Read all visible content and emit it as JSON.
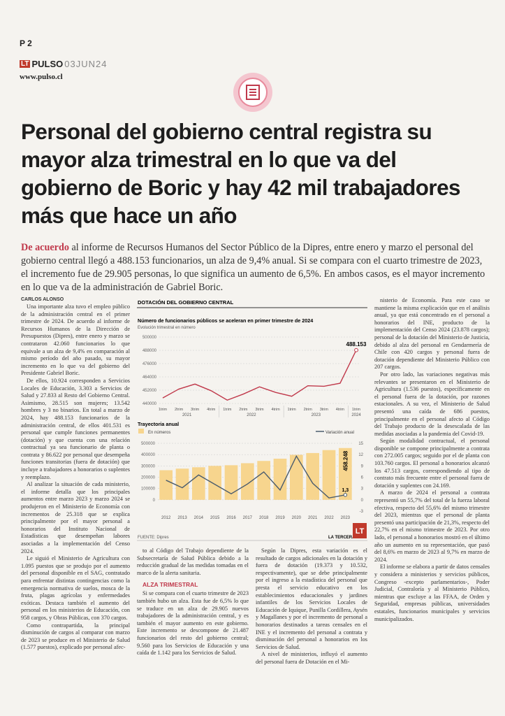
{
  "header": {
    "page": "P 2",
    "logo": "LT",
    "brand": "PULSO",
    "date": "03JUN24",
    "url": "www.pulso.cl"
  },
  "title": "Personal del gobierno central registra su mayor alza trimestral en lo que va del gobierno de Boric y hay 42 mil trabajadores más que hace un año",
  "lead": {
    "kicker": "De acuerdo",
    "text": "al informe de Recursos Humanos del Sector Público de la Dipres, entre enero y marzo el personal del gobierno central llegó a 488.153 funcionarios, un alza de 9,4% anual. Si se compara con el cuarto trimestre de 2023, el incremento fue de 29.905 personas, lo que significa un aumento de 6,5%. En ambos casos, es el mayor incremento en lo que va de la administración de Gabriel Boric."
  },
  "byline": "CARLOS ALONSO",
  "columns": [
    [
      {
        "text": "Una importante alza tuvo el empleo público de la administración central en el primer trimestre de 2024. De acuerdo al informe de Recursos Humanos de la Dirección de Presupuestos (Dipres), entre enero y marzo se contrataron 42.060 funcionarios lo que equivale a un alza de 9,4% en comparación al mismo período del año pasado, su mayor incremento en lo que va del gobierno del Presidente Gabriel Boric."
      },
      {
        "text": "De ellos, 10.924 corresponden a Servicios Locales de Educación, 3.303 a Servicios de Salud y 27.833 al Resto del Gobierno Central. Asimismo, 28.515 son mujeres; 13.542 hombres y 3 no binarios. En total a marzo de 2024, hay 488.153 funcionarios de la administración central, de ellos 401.531 es personal que cumple funciones permanentes (dotación) y que cuenta con una relación contractual ya sea funcionario de planta o contrata y 86.622 por personal que desempeña funciones transitorias (fuera de dotación) que incluye a trabajadores a honorarios o suplentes y reemplazo."
      },
      {
        "text": "Al analizar la situación de cada ministerio, el informe detalla que los principales aumentos entre marzo 2023 y marzo 2024 se produjeron en el Ministerio de Economía con incrementos de 25.318 que se explica principalmente por el mayor personal a honorarios del Instituto Nacional de Estadísticas que desempeñan labores asociadas a la implementación del Censo 2024."
      },
      {
        "text": "Le siguió el Ministerio de Agricultura con 1.095 puestos que se produjo por el aumento del personal disponible en el SAG, contratado para enfrentar distintas contingencias como la emergencia normativa de suelos, mosca de la fruta, plagas agrícolas y enfermedades exóticas. Destaca también el aumento del personal en los ministerios de Educación, con 958 cargos, y Obras Públicas, con 370 cargos."
      },
      {
        "text": "Como contrapartida, la principal disminución de cargos al comparar con marzo de 2023 se produce en el Ministerio de Salud (1.577 puestos), explicado por personal afec-"
      }
    ],
    [
      {
        "text": "to al Código del Trabajo dependiente de la Subsecretaría de Salud Pública debido a la reducción gradual de las medidas tomadas en el marco de la alerta sanitaria."
      },
      {
        "subhead": "ALZA TRIMESTRAL"
      },
      {
        "text": "Si se compara con el cuarto trimestre de 2023 también hubo un alza. Esta fue de 6,5% lo que se traduce en un alza de 29.905 nuevos trabajadores de la administración central, y es también el mayor aumento en este gobierno. Este incremento se descompone de 21.487 funcionarios del resto del gobierno central; 9.560 para los Servicios de Educación y una caída de 1.142 para los Servicios de Salud."
      }
    ],
    [
      {
        "text": "Según la Dipres, esta variación es el resultado de cargos adicionales en la dotación y fuera de dotación (19.373 y 10.532, respectivamente), que se debe principalmente por el ingreso a la estadística del personal que presta el servicio educativo en los establecimientos educacionales y jardines infantiles de los Servicios Locales de Educación de Iquique, Punilla Cordillera, Aysén y Magallanes y por el incremento de personal a honorarios destinados a tareas censales en el INE y el incremento del personal a contrata y disminución del personal a honorarios en los Servicios de Salud."
      },
      {
        "text": "A nivel de ministerios, influyó el aumento del personal fuera de Dotación en el Mi-"
      }
    ],
    [
      {
        "text": "nisterio de Economía. Para este caso se mantiene la misma explicación que en el análisis anual, ya que está concentrado en el personal a honorarios del INE, producto de la implementación del Censo 2024 (23.878 cargos); personal de la dotación del Ministerio de Justicia, debido al alza del personal en Gendarmería de Chile con 420 cargos y personal fuera de dotación dependiente del Ministerio Público con 207 cargos."
      },
      {
        "text": "Por otro lado, las variaciones negativas más relevantes se presentaron en el Ministerio de Agricultura (1.536 puestos), específicamente en el personal fuera de la dotación, por razones estacionales. A su vez, el Ministerio de Salud presentó una caída de 686 puestos, principalmente en el personal afecto al Código del Trabajo producto de la desescalada de las medidas asociadas a la pandemia del Covid-19."
      },
      {
        "text": "Según modalidad contractual, el personal disponible se compone principalmente a contrata con 272.005 cargos; seguido por el de planta con 103.760 cargos. El personal a honorarios alcanzó los 47.513 cargos, correspondiendo al tipo de contrato más frecuente entre el personal fuera de dotación y suplentes con 24.169."
      },
      {
        "text": "A marzo de 2024 el personal a contrata representó un 55,7% del total de la fuerza laboral efectiva, respecto del 55,6% del mismo trimestre del 2023, mientras que el personal de planta presentó una participación de 21,3%, respecto del 22,7% en el mismo trimestre de 2023. Por otro lado, el personal a honorarios mostró en el último año un aumento en su representación, que pasó del 8,6% en marzo de 2023 al 9,7% en marzo de 2024."
      },
      {
        "text": "El informe se elabora a partir de datos censales y considera a ministerios y servicios públicos, Congreso -excepto parlamentarios-, Poder Judicial, Contraloría y al Ministerio Público, mientras que excluye a las FFAA, de Orden y Seguridad, empresas públicas, universidades estatales, funcionarios municipales y servicios municipalizados."
      }
    ]
  ],
  "infographic": {
    "heading": "DOTACIÓN DEL GOBIERNO CENTRAL",
    "source": "FUENTE: Dipres",
    "credit": "LA TERCERA",
    "credit_logo": "LT"
  },
  "chart_data": [
    {
      "type": "line",
      "title": "Número de funcionarios públicos se aceleran en primer trimestre de 2024",
      "subtitle": "Evolución trimestral en número",
      "categories": [
        "1trim",
        "2trim",
        "3trim",
        "4trim",
        "1trim",
        "2trim",
        "3trim",
        "4trim",
        "1trim",
        "2trim",
        "3trim",
        "4trim",
        "1trim"
      ],
      "groups": [
        "2021",
        "2022",
        "2023",
        "2024"
      ],
      "series": [
        {
          "name": null,
          "color": "#c0394b",
          "values": [
            445000,
            453000,
            457500,
            451500,
            443000,
            448500,
            455000,
            450000,
            446500,
            456000,
            455500,
            458248,
            488153
          ],
          "value_labels": [
            null,
            null,
            null,
            null,
            null,
            null,
            null,
            null,
            null,
            null,
            null,
            null,
            "488.153"
          ]
        }
      ],
      "ylim": [
        440000,
        500000
      ],
      "yticks": [
        440000,
        452000,
        464000,
        476000,
        488000,
        500000
      ],
      "grid": true
    },
    {
      "type": "bar-line",
      "title": "Trayectoria anual",
      "categories": [
        "2012",
        "2013",
        "2014",
        "2015",
        "2016",
        "2017",
        "2018",
        "2019",
        "2020",
        "2021",
        "2022",
        "2023"
      ],
      "series": [
        {
          "name": "En números",
          "color": "#f7d58e",
          "values": [
            262000,
            276000,
            288000,
            300000,
            306000,
            324000,
            344000,
            364000,
            398000,
            414000,
            440000,
            458248
          ],
          "value_labels": [
            null,
            null,
            null,
            null,
            null,
            null,
            null,
            null,
            null,
            null,
            null,
            "458.248"
          ]
        },
        {
          "name": "Variación anual",
          "color": "#4a5c6e",
          "axis": "y2",
          "values": [
            5.2,
            3.2,
            6.6,
            4.1,
            1.6,
            4.2,
            7.4,
            2.6,
            11.6,
            4.4,
            0.5,
            1.3
          ],
          "value_labels": [
            null,
            null,
            null,
            null,
            null,
            null,
            null,
            null,
            null,
            null,
            null,
            "1,3"
          ]
        }
      ],
      "ylim": [
        -100000,
        500000
      ],
      "yticks": [
        0,
        100000,
        200000,
        300000,
        400000,
        500000
      ],
      "y2lim": [
        -3,
        15
      ],
      "y2ticks": [
        -3,
        0,
        3,
        6,
        9,
        12,
        15
      ],
      "grid": true
    }
  ]
}
